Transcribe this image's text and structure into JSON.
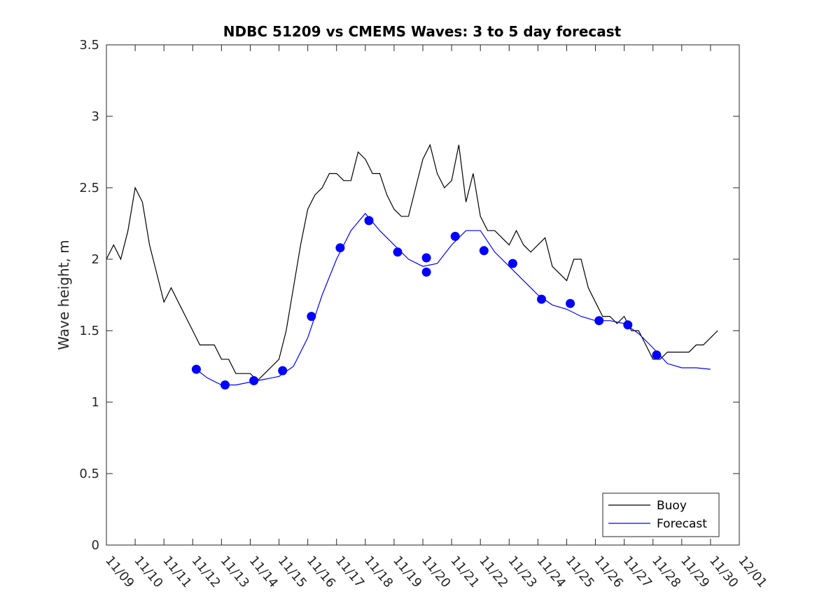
{
  "chart_data": {
    "type": "line",
    "title": "NDBC 51209 vs CMEMS Waves: 3 to 5 day forecast",
    "xlabel": "",
    "ylabel": "Wave height, m",
    "xlim": [
      "11/09",
      "12/01"
    ],
    "ylim": [
      0,
      3.5
    ],
    "x_ticks": [
      "11/09",
      "11/10",
      "11/11",
      "11/12",
      "11/13",
      "11/14",
      "11/15",
      "11/16",
      "11/17",
      "11/18",
      "11/19",
      "11/20",
      "11/21",
      "11/22",
      "11/23",
      "11/24",
      "11/25",
      "11/26",
      "11/27",
      "11/28",
      "11/29",
      "11/30",
      "12/01"
    ],
    "y_ticks": [
      "0",
      "0.5",
      "1",
      "1.5",
      "2",
      "2.5",
      "3",
      "3.5"
    ],
    "grid": false,
    "legend_position": "bottom-right",
    "colors": {
      "buoy": "#000000",
      "forecast": "#0000ff",
      "axes": "#262626"
    },
    "series": [
      {
        "name": "Buoy",
        "style": "line",
        "x": [
          "11/09 00:00",
          "11/09 06:00",
          "11/09 12:00",
          "11/09 18:00",
          "11/10 00:00",
          "11/10 06:00",
          "11/10 12:00",
          "11/10 18:00",
          "11/11 00:00",
          "11/11 06:00",
          "11/11 12:00",
          "11/11 18:00",
          "11/12 00:00",
          "11/12 06:00",
          "11/12 12:00",
          "11/12 18:00",
          "11/13 00:00",
          "11/13 06:00",
          "11/13 12:00",
          "11/13 18:00",
          "11/14 00:00",
          "11/14 06:00",
          "11/14 12:00",
          "11/14 18:00",
          "11/15 00:00",
          "11/15 06:00",
          "11/15 12:00",
          "11/15 18:00",
          "11/16 00:00",
          "11/16 06:00",
          "11/16 12:00",
          "11/16 18:00",
          "11/17 00:00",
          "11/17 06:00",
          "11/17 12:00",
          "11/17 18:00",
          "11/18 00:00",
          "11/18 06:00",
          "11/18 12:00",
          "11/18 18:00",
          "11/19 00:00",
          "11/19 06:00",
          "11/19 12:00",
          "11/19 18:00",
          "11/20 00:00",
          "11/20 06:00",
          "11/20 12:00",
          "11/20 18:00",
          "11/21 00:00",
          "11/21 06:00",
          "11/21 12:00",
          "11/21 18:00",
          "11/22 00:00",
          "11/22 06:00",
          "11/22 12:00",
          "11/22 18:00",
          "11/23 00:00",
          "11/23 06:00",
          "11/23 12:00",
          "11/23 18:00",
          "11/24 00:00",
          "11/24 06:00",
          "11/24 12:00",
          "11/24 18:00",
          "11/25 00:00",
          "11/25 06:00",
          "11/25 12:00",
          "11/25 18:00",
          "11/26 00:00",
          "11/26 06:00",
          "11/26 12:00",
          "11/26 18:00",
          "11/27 00:00",
          "11/27 06:00",
          "11/27 12:00",
          "11/27 18:00",
          "11/28 00:00",
          "11/28 06:00",
          "11/28 12:00",
          "11/28 18:00",
          "11/29 00:00",
          "11/29 06:00",
          "11/29 12:00",
          "11/29 18:00",
          "11/30 00:00",
          "11/30 06:00"
        ],
        "y": [
          2.0,
          2.1,
          2.0,
          2.2,
          2.5,
          2.4,
          2.1,
          1.9,
          1.7,
          1.8,
          1.7,
          1.6,
          1.5,
          1.4,
          1.4,
          1.4,
          1.3,
          1.3,
          1.2,
          1.2,
          1.2,
          1.15,
          1.2,
          1.25,
          1.3,
          1.5,
          1.8,
          2.1,
          2.35,
          2.45,
          2.5,
          2.6,
          2.6,
          2.55,
          2.55,
          2.75,
          2.7,
          2.6,
          2.6,
          2.45,
          2.35,
          2.3,
          2.3,
          2.5,
          2.7,
          2.8,
          2.6,
          2.5,
          2.55,
          2.8,
          2.4,
          2.6,
          2.3,
          2.2,
          2.2,
          2.15,
          2.1,
          2.2,
          2.1,
          2.05,
          2.1,
          2.15,
          1.95,
          1.9,
          1.85,
          2.0,
          2.0,
          1.8,
          1.7,
          1.6,
          1.6,
          1.55,
          1.6,
          1.5,
          1.5,
          1.4,
          1.3,
          1.3,
          1.35,
          1.35,
          1.35,
          1.35,
          1.4,
          1.4,
          1.45,
          1.5
        ]
      },
      {
        "name": "Forecast",
        "style": "line",
        "x": [
          "11/12 03:00",
          "11/12 12:00",
          "11/13 00:00",
          "11/13 12:00",
          "11/14 00:00",
          "11/14 12:00",
          "11/15 00:00",
          "11/15 12:00",
          "11/16 00:00",
          "11/16 12:00",
          "11/17 00:00",
          "11/17 12:00",
          "11/18 00:00",
          "11/18 12:00",
          "11/19 00:00",
          "11/19 12:00",
          "11/20 00:00",
          "11/20 12:00",
          "11/21 00:00",
          "11/21 12:00",
          "11/22 00:00",
          "11/22 12:00",
          "11/23 00:00",
          "11/23 12:00",
          "11/24 00:00",
          "11/24 12:00",
          "11/25 00:00",
          "11/25 12:00",
          "11/26 00:00",
          "11/26 12:00",
          "11/27 00:00",
          "11/27 12:00",
          "11/28 00:00",
          "11/28 12:00",
          "11/29 00:00",
          "11/29 12:00",
          "11/30 00:00"
        ],
        "y": [
          1.23,
          1.17,
          1.12,
          1.12,
          1.14,
          1.16,
          1.18,
          1.25,
          1.45,
          1.75,
          2.0,
          2.2,
          2.32,
          2.2,
          2.1,
          2.0,
          1.95,
          1.97,
          2.1,
          2.2,
          2.2,
          2.05,
          1.95,
          1.85,
          1.75,
          1.68,
          1.65,
          1.6,
          1.57,
          1.57,
          1.55,
          1.48,
          1.38,
          1.27,
          1.24,
          1.24,
          1.23
        ]
      },
      {
        "name": "",
        "style": "markers",
        "x": [
          "11/12 03:00",
          "11/13 03:00",
          "11/14 03:00",
          "11/15 03:00",
          "11/16 03:00",
          "11/17 03:00",
          "11/18 03:00",
          "11/19 03:00",
          "11/20 03:00",
          "11/20 03:00",
          "11/21 03:00",
          "11/22 03:00",
          "11/23 03:00",
          "11/24 03:00",
          "11/25 03:00",
          "11/26 03:00",
          "11/27 03:00",
          "11/28 03:00"
        ],
        "y": [
          1.23,
          1.12,
          1.15,
          1.22,
          1.6,
          2.08,
          2.27,
          2.05,
          2.01,
          1.91,
          2.16,
          2.06,
          1.97,
          1.72,
          1.69,
          1.57,
          1.54,
          1.33
        ]
      }
    ]
  }
}
